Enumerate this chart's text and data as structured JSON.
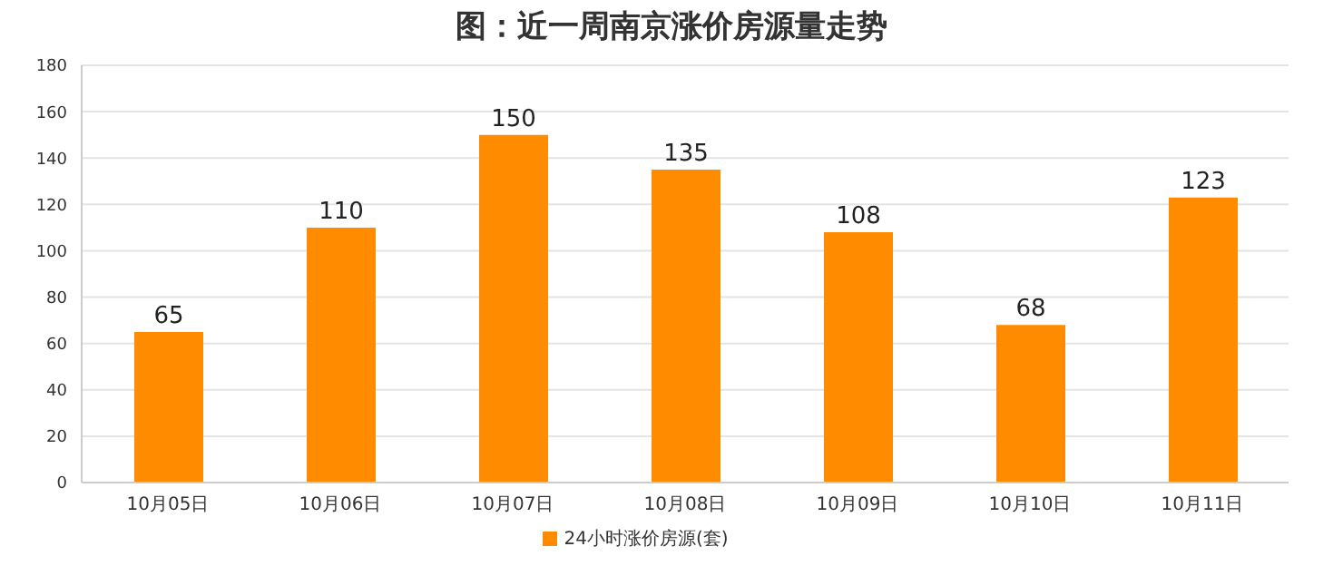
{
  "chart_data": {
    "type": "bar",
    "title": "图：近一周南京涨价房源量走势",
    "categories": [
      "10月05日",
      "10月06日",
      "10月07日",
      "10月08日",
      "10月09日",
      "10月10日",
      "10月11日"
    ],
    "series": [
      {
        "name": "24小时涨价房源(套)",
        "color": "#ff8c00",
        "values": [
          65,
          110,
          150,
          135,
          108,
          68,
          123
        ]
      }
    ],
    "ylim": [
      0,
      180
    ],
    "yticks": [
      0,
      20,
      40,
      60,
      80,
      100,
      120,
      140,
      160,
      180
    ],
    "grid": "y",
    "legend": "bottom",
    "data_labels": true
  }
}
